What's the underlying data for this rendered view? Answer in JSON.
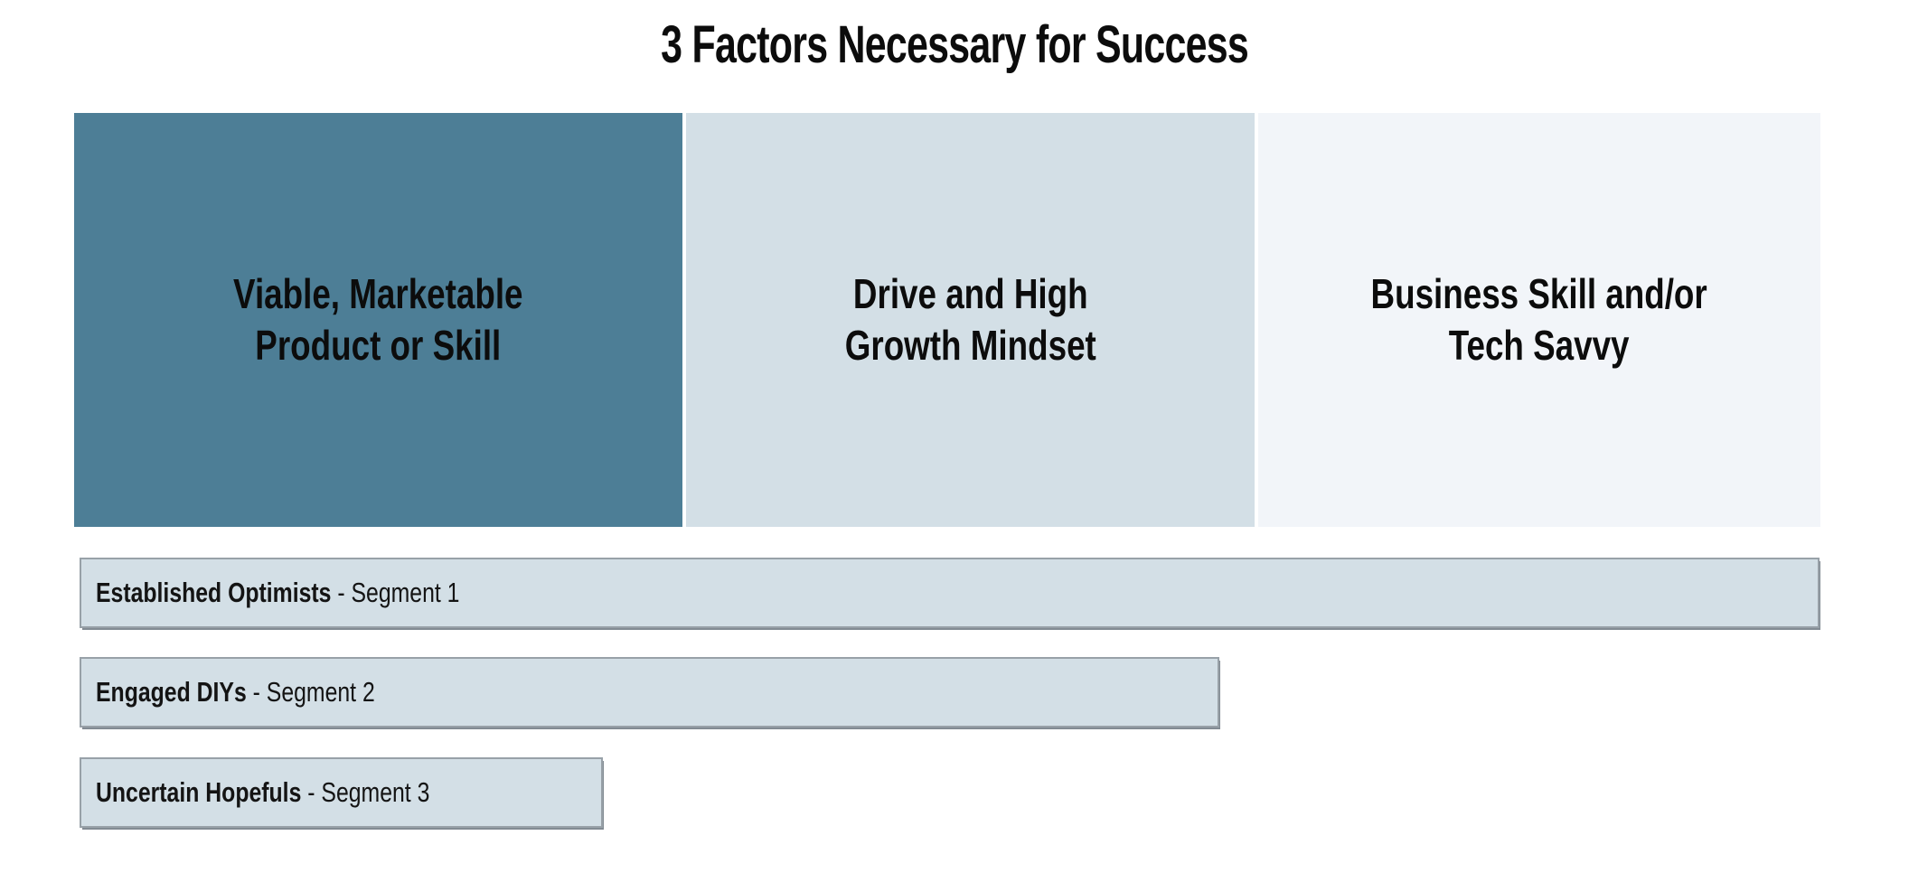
{
  "title": "3 Factors Necessary for Success",
  "colors": {
    "background": "#FFFFFF",
    "factor1_fill": "#4D7E96",
    "factor2_fill": "#D3DFE6",
    "factor3_fill": "#F2F5F9",
    "segment_fill": "#D3DFE6",
    "segment_border": "#98A1A8",
    "text": "#111111"
  },
  "factors": [
    {
      "line1": "Viable, Marketable",
      "line2": "Product or Skill",
      "fill": "#4D7E96",
      "width_pct": 35.0
    },
    {
      "line1": "Drive and High",
      "line2": "Growth Mindset",
      "fill": "#D3DFE6",
      "width_pct": 32.65
    },
    {
      "line1": "Business Skill and/or",
      "line2": "Tech Savvy",
      "fill": "#F2F5F9",
      "width_pct": 32.35
    }
  ],
  "segments": [
    {
      "name": "Established Optimists",
      "suffix": " - Segment 1",
      "width_pct": 91.15
    },
    {
      "name": "Engaged DIYs",
      "suffix": " - Segment 2",
      "width_pct": 59.7
    },
    {
      "name": "Uncertain Hopefuls",
      "suffix": " - Segment 3",
      "width_pct": 27.4
    }
  ]
}
